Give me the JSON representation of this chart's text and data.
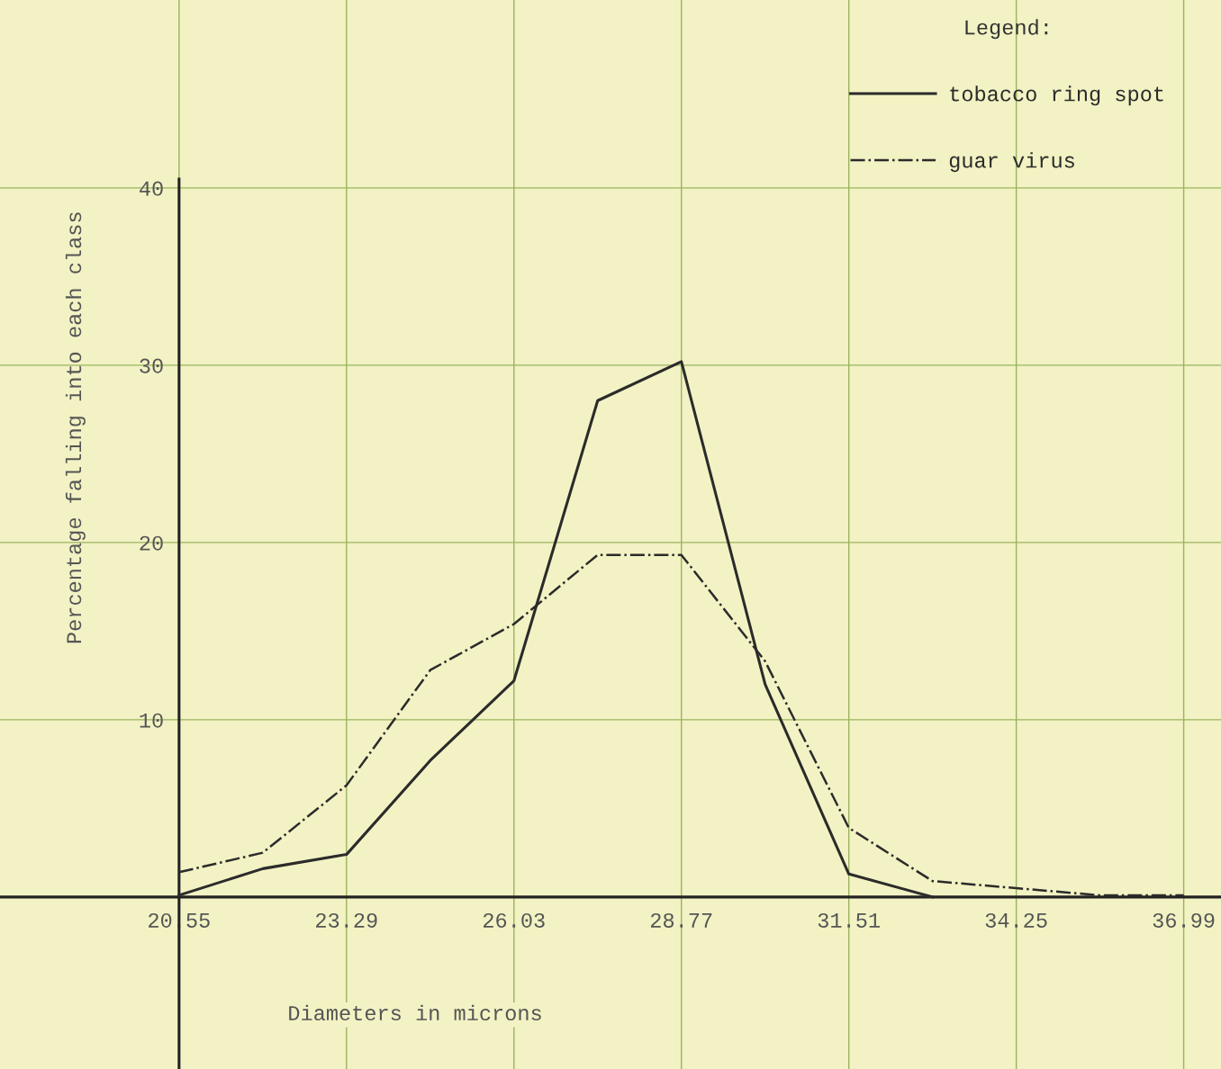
{
  "chart_data": {
    "type": "line",
    "xlabel": "Diameters in microns",
    "ylabel": "Percentage falling into each class",
    "legend_title": "Legend:",
    "series": [
      {
        "name": "tobacco ring spot",
        "color": "#2b2b2b",
        "line_style": "solid",
        "x": [
          20.55,
          21.92,
          23.29,
          24.66,
          26.03,
          27.4,
          28.77,
          30.14,
          31.51,
          32.88
        ],
        "values": [
          0.1,
          1.6,
          2.4,
          7.7,
          12.2,
          28.0,
          30.2,
          12.0,
          1.3,
          0
        ]
      },
      {
        "name": "guar virus",
        "color": "#2b2b2b",
        "line_style": "dashdot",
        "x": [
          20.55,
          21.92,
          23.29,
          24.66,
          26.03,
          27.4,
          28.77,
          30.14,
          31.51,
          32.88,
          34.25,
          35.62,
          36.99
        ],
        "values": [
          1.4,
          2.5,
          6.3,
          12.8,
          15.4,
          19.3,
          19.3,
          13.3,
          3.9,
          0.9,
          0.5,
          0.1,
          0.1
        ]
      }
    ],
    "xlim": [
      17.62,
      37.6
    ],
    "ylim": [
      -9.7,
      50.6
    ],
    "xticks": [
      20.55,
      23.29,
      26.03,
      28.77,
      31.51,
      34.25,
      36.99
    ],
    "yticks": [
      10,
      20,
      30,
      40
    ],
    "grid": true,
    "legend": "top right",
    "marker": "none"
  }
}
